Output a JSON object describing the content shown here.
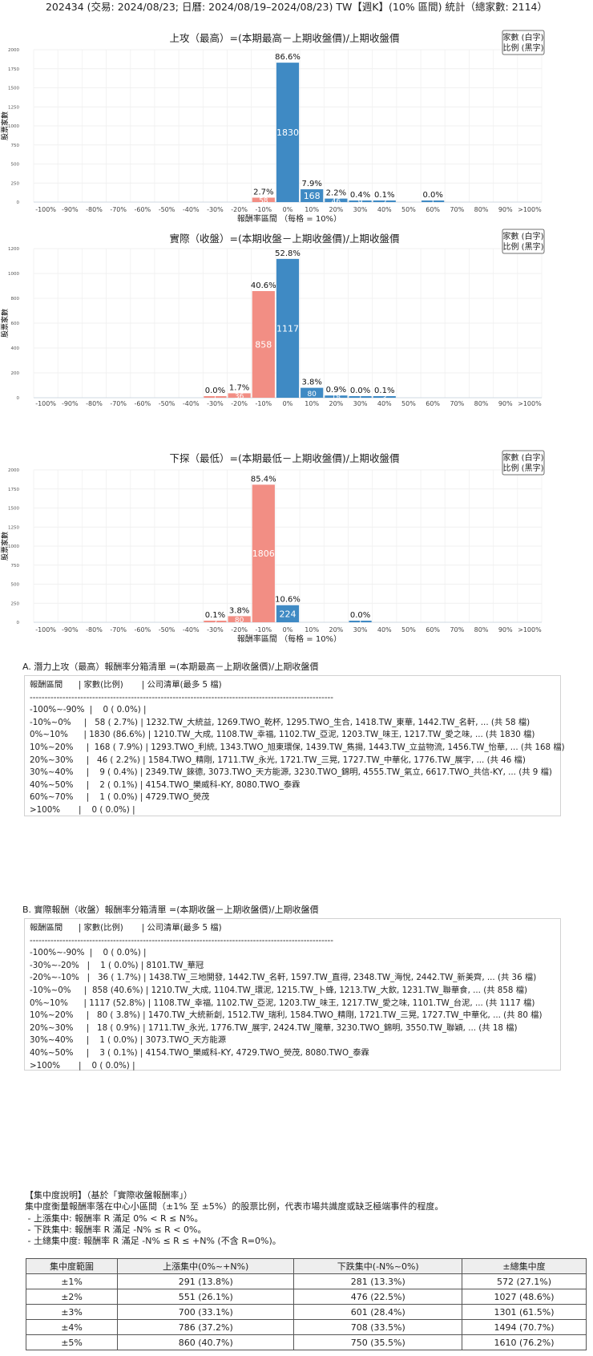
{
  "header": {
    "title": "202434 (交易: 2024/08/23; 日曆: 2024/08/19–2024/08/23) TW【週K】(10% 區間) 統計（總家數: 2114）"
  },
  "legend": {
    "line1": "家數 (白字)",
    "line2": "比例 (黑字)"
  },
  "chart_data": [
    {
      "type": "bar",
      "title": "上攻（最高）=(本期最高－上期收盤價)/上期收盤價",
      "xlabel": "報酬率區間 （每格 = 10%）",
      "ylabel": "股票家數",
      "categories": [
        "-100%",
        "-90%",
        "-80%",
        "-70%",
        "-60%",
        "-50%",
        "-40%",
        "-30%",
        "-20%",
        "-10%",
        "0%",
        "10%",
        "20%",
        "30%",
        "40%",
        "50%",
        "60%",
        "70%",
        "80%",
        "90%",
        ">100%"
      ],
      "values": [
        0,
        0,
        0,
        0,
        0,
        0,
        0,
        0,
        0,
        58,
        1830,
        168,
        46,
        9,
        2,
        0,
        1,
        0,
        0,
        0,
        0
      ],
      "pct_labels": [
        "",
        "",
        "",
        "",
        "",
        "",
        "",
        "",
        "",
        "2.7%",
        "86.6%",
        "7.9%",
        "2.2%",
        "0.4%",
        "0.1%",
        "",
        "0.0%",
        "",
        "",
        "",
        ""
      ],
      "ylim": [
        0,
        2000
      ],
      "yticks": [
        0,
        250,
        500,
        750,
        1000,
        1250,
        1500,
        1750,
        2000
      ],
      "colors": {
        "negative": "#f28e84",
        "positive": "#3f8ac4"
      }
    },
    {
      "type": "bar",
      "title": "實際（收盤）=(本期收盤－上期收盤價)/上期收盤價",
      "xlabel": "",
      "ylabel": "股票家數",
      "categories": [
        "-100%",
        "-90%",
        "-80%",
        "-70%",
        "-60%",
        "-50%",
        "-40%",
        "-30%",
        "-20%",
        "-10%",
        "0%",
        "10%",
        "20%",
        "30%",
        "40%",
        "50%",
        "60%",
        "70%",
        "80%",
        "90%",
        ">100%"
      ],
      "values": [
        0,
        0,
        0,
        0,
        0,
        0,
        0,
        1,
        36,
        858,
        1117,
        80,
        18,
        1,
        3,
        0,
        0,
        0,
        0,
        0,
        0
      ],
      "pct_labels": [
        "",
        "",
        "",
        "",
        "",
        "",
        "",
        "0.0%",
        "1.7%",
        "40.6%",
        "52.8%",
        "3.8%",
        "0.9%",
        "0.0%",
        "0.1%",
        "",
        "",
        "",
        "",
        "",
        ""
      ],
      "ylim": [
        0,
        1200
      ],
      "yticks": [
        0,
        200,
        400,
        600,
        800,
        1000,
        1200
      ],
      "colors": {
        "negative": "#f28e84",
        "positive": "#3f8ac4"
      }
    },
    {
      "type": "bar",
      "title": "下探（最低）=(本期最低－上期收盤價)/上期收盤價",
      "xlabel": "報酬率區間 （每格 = 10%）",
      "ylabel": "股票家數",
      "categories": [
        "-100%",
        "-90%",
        "-80%",
        "-70%",
        "-60%",
        "-50%",
        "-40%",
        "-30%",
        "-20%",
        "-10%",
        "0%",
        "10%",
        "20%",
        "30%",
        "40%",
        "50%",
        "60%",
        "70%",
        "80%",
        "90%",
        ">100%"
      ],
      "values": [
        0,
        0,
        0,
        0,
        0,
        0,
        0,
        2,
        80,
        1806,
        224,
        0,
        0,
        1,
        0,
        0,
        0,
        0,
        0,
        0,
        0
      ],
      "pct_labels": [
        "",
        "",
        "",
        "",
        "",
        "",
        "",
        "0.1%",
        "3.8%",
        "85.4%",
        "10.6%",
        "",
        "",
        "0.0%",
        "",
        "",
        "",
        "",
        "",
        "",
        ""
      ],
      "ylim": [
        0,
        2000
      ],
      "yticks": [
        0,
        250,
        500,
        750,
        1000,
        1250,
        1500,
        1750,
        2000
      ],
      "colors": {
        "negative": "#f28e84",
        "positive": "#3f8ac4"
      }
    }
  ],
  "section_a": {
    "title": "A. 潛力上攻（最高）報酬率分箱清單 =(本期最高－上期收盤價)/上期收盤價",
    "lines": [
      "報酬區間      | 家數(比例)       | 公司清單(最多 5 檔)",
      "------------------------------------------------------------------------------------------------------",
      "-100%~-90%  |    0 ( 0.0%) |",
      "-10%~0%     |   58 ( 2.7%) | 1232.TW_大統益, 1269.TWO_乾杯, 1295.TWO_生合, 1418.TW_東華, 1442.TW_名軒, ... (共 58 檔)",
      "0%~10%      | 1830 (86.6%) | 1210.TW_大成, 1108.TW_幸福, 1102.TW_亞泥, 1203.TW_味王, 1217.TW_愛之味, ... (共 1830 檔)",
      "10%~20%     |  168 ( 7.9%) | 1293.TWO_利統, 1343.TWO_旭東環保, 1439.TW_雋揚, 1443.TW_立益物流, 1456.TW_怡華, ... (共 168 檔)",
      "20%~30%     |   46 ( 2.2%) | 1584.TWO_精剛, 1711.TW_永光, 1721.TW_三晃, 1727.TW_中華化, 1776.TW_展宇, ... (共 46 檔)",
      "30%~40%     |    9 ( 0.4%) | 2349.TW_錸德, 3073.TWO_天方能源, 3230.TWO_錦明, 4555.TW_氣立, 6617.TWO_共信-KY, ... (共 9 檔)",
      "40%~50%     |    2 ( 0.1%) | 4154.TWO_樂威科-KY, 8080.TWO_泰霖",
      "60%~70%     |    1 ( 0.0%) | 4729.TWO_熒茂",
      ">100%       |    0 ( 0.0%) |"
    ]
  },
  "section_b": {
    "title": "B. 實際報酬（收盤）報酬率分箱清單 =(本期收盤－上期收盤價)/上期收盤價",
    "lines": [
      "報酬區間      | 家數(比例)       | 公司清單(最多 5 檔)",
      "------------------------------------------------------------------------------------------------------",
      "-100%~-90%  |    0 ( 0.0%) |",
      "-30%~-20%   |    1 ( 0.0%) | 8101.TW_華冠",
      "-20%~-10%   |   36 ( 1.7%) | 1438.TW_三地開發, 1442.TW_名軒, 1597.TW_直得, 2348.TW_海悅, 2442.TW_新美齊, ... (共 36 檔)",
      "-10%~0%     |  858 (40.6%) | 1210.TW_大成, 1104.TW_環泥, 1215.TW_卜蜂, 1213.TW_大飲, 1231.TW_聯華食, ... (共 858 檔)",
      "0%~10%      | 1117 (52.8%) | 1108.TW_幸福, 1102.TW_亞泥, 1203.TW_味王, 1217.TW_愛之味, 1101.TW_台泥, ... (共 1117 檔)",
      "10%~20%     |   80 ( 3.8%) | 1470.TW_大統新創, 1512.TW_瑞利, 1584.TWO_精剛, 1721.TW_三晃, 1727.TW_中華化, ... (共 80 檔)",
      "20%~30%     |   18 ( 0.9%) | 1711.TW_永光, 1776.TW_展宇, 2424.TW_隴華, 3230.TWO_錦明, 3550.TW_聯穎, ... (共 18 檔)",
      "30%~40%     |    1 ( 0.0%) | 3073.TWO_天方能源",
      "40%~50%     |    3 ( 0.1%) | 4154.TWO_樂威科-KY, 4729.TWO_熒茂, 8080.TWO_泰霖",
      ">100%       |    0 ( 0.0%) |"
    ]
  },
  "concentration": {
    "lines": [
      "【集中度說明】（基於「實際收盤報酬率」）",
      "集中度衡量報酬率落在中心小區間（±1% 至 ±5%）的股票比例，代表市場共識度或缺乏極端事件的程度。",
      " - 上漲集中: 報酬率 R 滿足 0% < R ≤ N%。",
      " - 下跌集中: 報酬率 R 滿足 -N% ≤ R < 0%。",
      " - 土總集中度: 報酬率 R 滿足 -N% ≤ R ≤ +N% (不含 R=0%)。"
    ],
    "headers": [
      "集中度範圍",
      "上漲集中(0%~+N%)",
      "下跌集中(-N%~0%)",
      "±總集中度"
    ],
    "rows": [
      [
        "±1%",
        "291 (13.8%)",
        "281 (13.3%)",
        "572 (27.1%)"
      ],
      [
        "±2%",
        "551 (26.1%)",
        "476 (22.5%)",
        "1027 (48.6%)"
      ],
      [
        "±3%",
        "700 (33.1%)",
        "601 (28.4%)",
        "1301 (61.5%)"
      ],
      [
        "±4%",
        "786 (37.2%)",
        "708 (33.5%)",
        "1494 (70.7%)"
      ],
      [
        "±5%",
        "860 (40.7%)",
        "750 (35.5%)",
        "1610 (76.2%)"
      ]
    ]
  }
}
